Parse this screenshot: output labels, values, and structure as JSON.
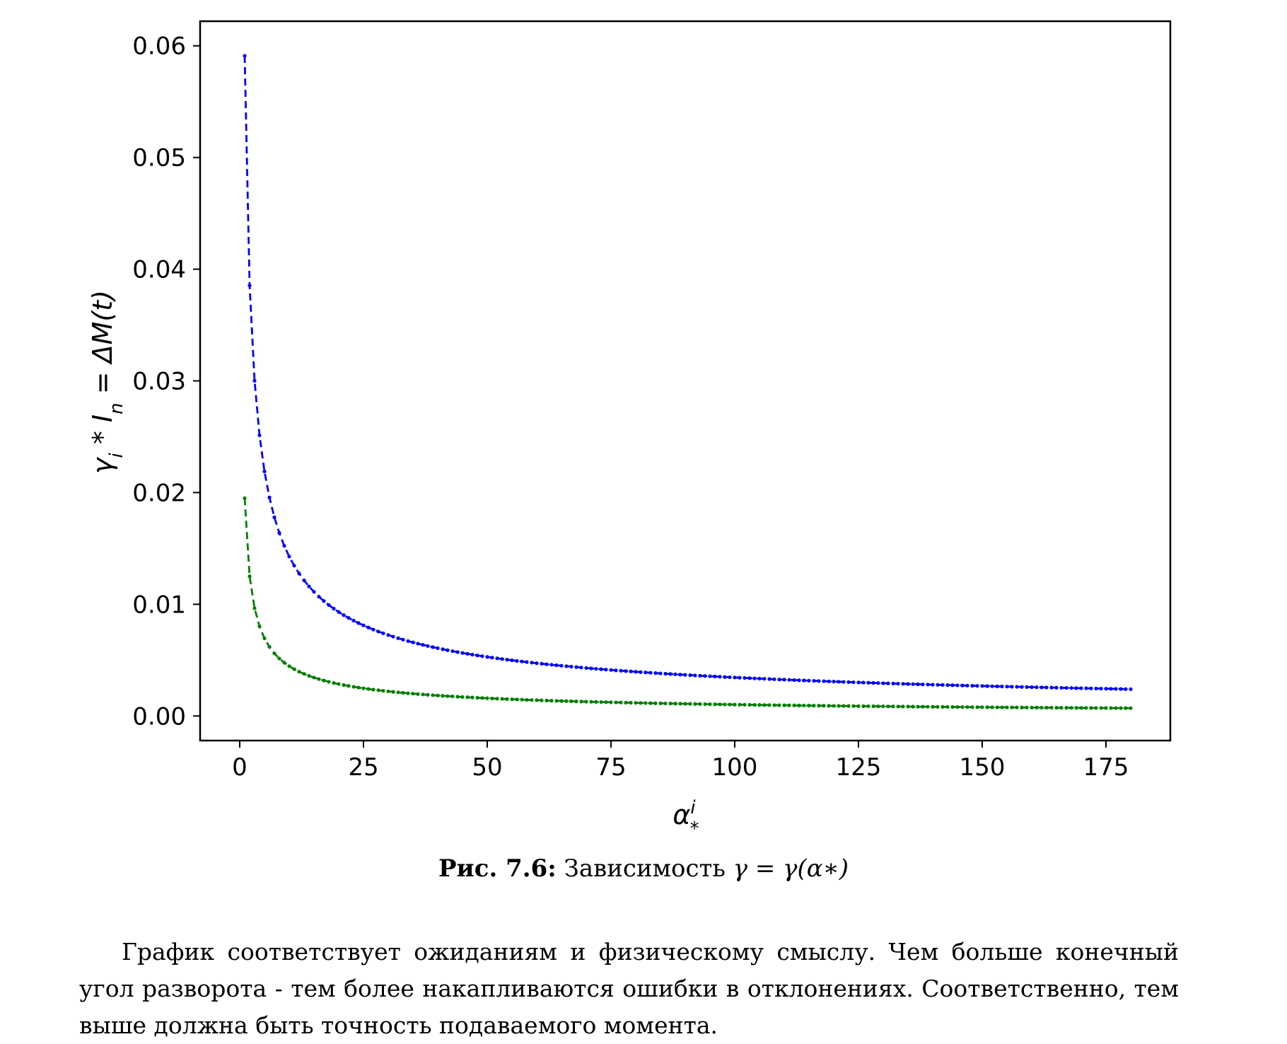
{
  "chart_data": {
    "type": "line",
    "xlabel": "α*ⁱ",
    "ylabel": "γᵢ * Iₙ = ΔM(t)",
    "xlim": [
      -8,
      188
    ],
    "ylim": [
      -0.0022,
      0.0622
    ],
    "x_ticks": [
      0,
      25,
      50,
      75,
      100,
      125,
      150,
      175
    ],
    "x_tick_labels": [
      "0",
      "25",
      "50",
      "75",
      "100",
      "125",
      "150",
      "175"
    ],
    "y_ticks": [
      0.0,
      0.01,
      0.02,
      0.03,
      0.04,
      0.05,
      0.06
    ],
    "y_tick_labels": [
      "0.00",
      "0.01",
      "0.02",
      "0.03",
      "0.04",
      "0.05",
      "0.06"
    ],
    "grid": false,
    "x_range": [
      1,
      180
    ],
    "series": [
      {
        "color": "#0000ff",
        "style": "dashed-dots",
        "model": "0.0591/x^0.62",
        "start": 0.0591,
        "end": 0.0024
      },
      {
        "color": "#007f00",
        "style": "dashed-dots",
        "model": "0.0195/x^0.64",
        "start": 0.0195,
        "end": 0.0007
      }
    ]
  },
  "caption": {
    "label": "Рис. 7.6:",
    "text": "Зависимость",
    "formula": "γ = γ(α∗)"
  },
  "paragraph": "График соответствует ожиданиям и физическому смыслу. Чем больше конечный угол разворота - тем более накапливаются ошибки в отклонениях. Соответственно, тем выше должна быть точность подаваемого момента."
}
